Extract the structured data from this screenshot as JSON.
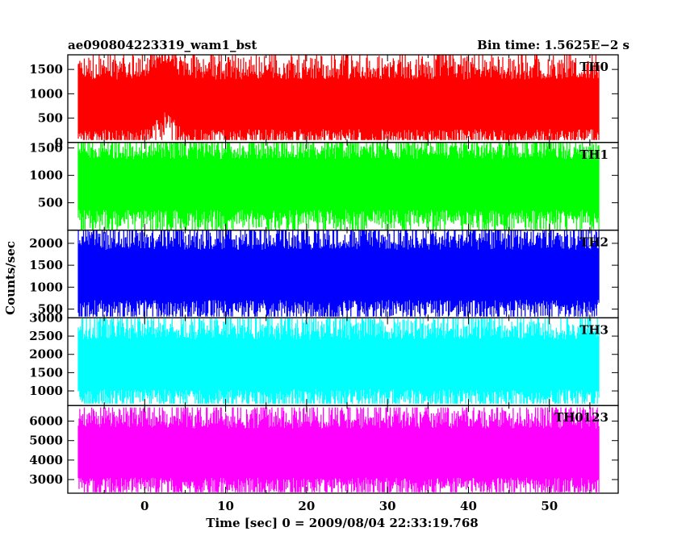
{
  "header": {
    "title": "ae090804223319_wam1_bst",
    "bin_time": "Bin time: 1.5625E−2 s"
  },
  "axes": {
    "xlabel": "Time [sec] 0 = 2009/08/04 22:33:19.768",
    "ylabel": "Counts/sec"
  },
  "chart_data": {
    "type": "line",
    "x_range": [
      -8.2,
      56.2
    ],
    "xlim": [
      -9.5,
      58.5
    ],
    "x_ticks": [
      0,
      10,
      20,
      30,
      40,
      50
    ],
    "x_tick_labels": [
      "0",
      "10",
      "20",
      "30",
      "40",
      "50"
    ],
    "bin_time_s": 0.015625,
    "series": [
      {
        "name": "TH0",
        "color": "#ff0000",
        "ylim": [
          0,
          1800
        ],
        "y_ticks": [
          0,
          500,
          1000,
          1500
        ],
        "y_tick_labels": [
          "0",
          "500",
          "1000",
          "1500"
        ],
        "mean": 800,
        "low": 50,
        "high": 1800,
        "bump": {
          "center": 2.5,
          "width": 1.5,
          "amount": 350
        }
      },
      {
        "name": "TH1",
        "color": "#00ff00",
        "ylim": [
          0,
          1600
        ],
        "y_ticks": [
          500,
          1000,
          1500
        ],
        "y_tick_labels": [
          "500",
          "1000",
          "1500"
        ],
        "mean": 850,
        "low": 0,
        "high": 1600
      },
      {
        "name": "TH2",
        "color": "#0000ff",
        "ylim": [
          300,
          2300
        ],
        "y_ticks": [
          500,
          1000,
          1500,
          2000
        ],
        "y_tick_labels": [
          "500",
          "1000",
          "1500",
          "2000"
        ],
        "mean": 1300,
        "low": 330,
        "high": 2300
      },
      {
        "name": "TH3",
        "color": "#00ffff",
        "ylim": [
          600,
          3000
        ],
        "y_ticks": [
          1000,
          1500,
          2000,
          2500,
          3000
        ],
        "y_tick_labels": [
          "1000",
          "1500",
          "2000",
          "2500",
          "3000"
        ],
        "mean": 1750,
        "low": 650,
        "high": 3000
      },
      {
        "name": "TH0123",
        "color": "#ff00ff",
        "ylim": [
          2300,
          6800
        ],
        "y_ticks": [
          3000,
          4000,
          5000,
          6000
        ],
        "y_tick_labels": [
          "3000",
          "4000",
          "5000",
          "6000"
        ],
        "mean": 4400,
        "low": 2350,
        "high": 6700
      }
    ]
  }
}
